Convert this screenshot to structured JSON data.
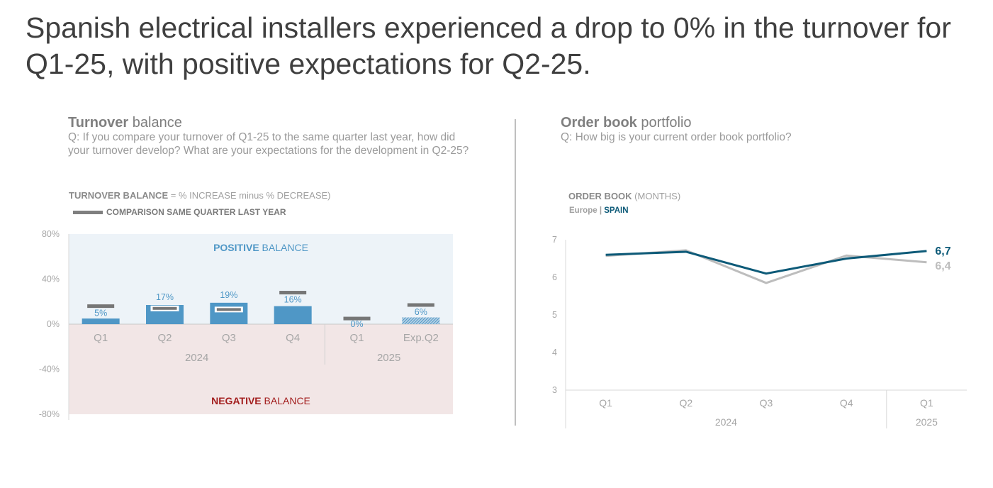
{
  "headline": "Spanish electrical installers experienced a drop to 0% in the turnover for Q1-25, with positive expectations for Q2-25.",
  "left_panel": {
    "title_bold": "Turnover",
    "title_rest": " balance",
    "question_line1": "Q: If you compare your turnover of Q1-25 to the same quarter last year, how did",
    "question_line2": "your turnover develop? What are your expectations for the development in Q2-25?",
    "subtitle_bold": "TURNOVER BALANCE",
    "subtitle_rest": " = % INCREASE minus % DECREASE)",
    "legend_label": "COMPARISON SAME QUARTER LAST YEAR"
  },
  "right_panel": {
    "title_bold": "Order book",
    "title_rest": " portfolio",
    "question": "Q: How big is your current order book portfolio?",
    "subtitle_bold": "ORDER BOOK",
    "subtitle_rest": " (MONTHS)",
    "legend_europe": "Europe",
    "legend_sep": " | ",
    "legend_spain": "SPAIN"
  },
  "colors": {
    "bar": "#4f97c6",
    "positive_bg": "#edf3f8",
    "negative_bg": "#f2e6e6",
    "comparison_marker": "#767676",
    "spain_line": "#0d5a78",
    "europe_line": "#bdbdbd",
    "negative_label": "#a31e1e",
    "positive_label": "#4f97c6"
  },
  "chart_data": [
    {
      "type": "bar",
      "categories": [
        "Q1",
        "Q2",
        "Q3",
        "Q4",
        "Q1",
        "Exp.Q2"
      ],
      "groups": [
        {
          "label": "2024",
          "categories": [
            "Q1",
            "Q2",
            "Q3",
            "Q4"
          ]
        },
        {
          "label": "2025",
          "categories": [
            "Q1",
            "Exp.Q2"
          ]
        }
      ],
      "series": [
        {
          "values": [
            5,
            17,
            19,
            16,
            0,
            6
          ],
          "data_labels": [
            "5%",
            "17%",
            "19%",
            "16%",
            "0%",
            "6%"
          ]
        }
      ],
      "comparison_same_quarter_last_year": [
        16,
        14,
        13,
        28,
        5,
        17
      ],
      "expectation_category": "Exp.Q2",
      "ylim": [
        -80,
        80
      ],
      "yticks": [
        "80%",
        "40%",
        "0%",
        "-40%",
        "-80%"
      ],
      "ytick_values": [
        80,
        40,
        0,
        -40,
        -80
      ],
      "positive_zone_label_bold": "POSITIVE",
      "positive_zone_label_rest": " BALANCE",
      "negative_zone_label_bold": "NEGATIVE",
      "negative_zone_label_rest": " BALANCE"
    },
    {
      "type": "line",
      "categories": [
        "Q1",
        "Q2",
        "Q3",
        "Q4",
        "Q1"
      ],
      "groups": [
        {
          "label": "2024",
          "categories": [
            "Q1",
            "Q2",
            "Q3",
            "Q4"
          ]
        },
        {
          "label": "2025",
          "categories": [
            "Q1"
          ]
        }
      ],
      "series": [
        {
          "name": "Europe",
          "values": [
            6.57,
            6.72,
            5.85,
            6.58,
            6.4
          ],
          "end_label": "6,4"
        },
        {
          "name": "SPAIN",
          "values": [
            6.6,
            6.68,
            6.1,
            6.5,
            6.7
          ],
          "end_label": "6,7"
        }
      ],
      "ylim": [
        3,
        7
      ],
      "yticks": [
        "7",
        "6",
        "5",
        "4",
        "3"
      ],
      "ytick_values": [
        7,
        6,
        5,
        4,
        3
      ]
    }
  ]
}
